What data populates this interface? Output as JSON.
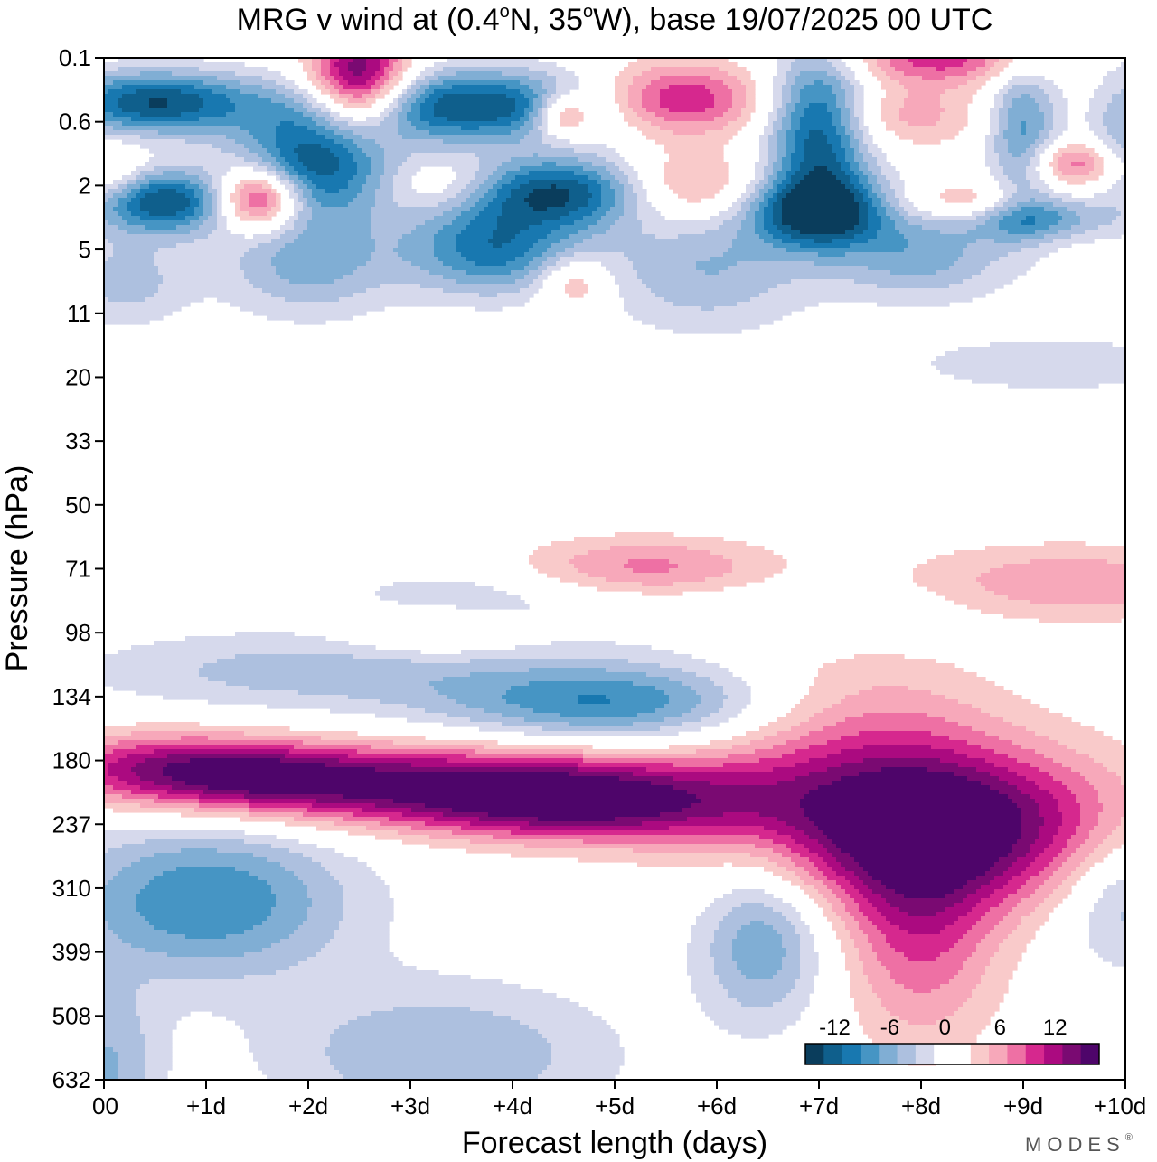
{
  "chart_data": {
    "type": "heatmap",
    "title": "MRG v wind at (0.4°N, 35°W),  base 19/07/2025  00 UTC",
    "title_parts": {
      "prefix": "MRG v wind at (0.4",
      "deg1": "o",
      "mid": "N, 35",
      "deg2": "o",
      "suffix": "W),  base 19/07/2025  00 UTC"
    },
    "xlabel": "Forecast length (days)",
    "ylabel": "Pressure (hPa)",
    "x_ticks": [
      "00",
      "+1d",
      "+2d",
      "+3d",
      "+4d",
      "+5d",
      "+6d",
      "+7d",
      "+8d",
      "+9d",
      "+10d"
    ],
    "x_range": [
      0,
      10
    ],
    "y_ticks": [
      "0.1",
      "0.6",
      "2",
      "5",
      "11",
      "20",
      "33",
      "50",
      "71",
      "98",
      "134",
      "180",
      "237",
      "310",
      "399",
      "508",
      "632"
    ],
    "y_scale": "log-pressure, index 0..16 top to bottom",
    "colorbar": {
      "labels": [
        "-12",
        "-6",
        "0",
        "6",
        "12"
      ],
      "label_values": [
        -12,
        -6,
        0,
        6,
        12
      ],
      "levels": [
        -14,
        -12,
        -10,
        -8,
        -6,
        -4,
        -2,
        0,
        2,
        4,
        6,
        8,
        10,
        12,
        14
      ],
      "colors": [
        "#0a3d5c",
        "#0f5f8c",
        "#1878b0",
        "#4695c4",
        "#80aed4",
        "#adc0df",
        "#d6d9ec",
        "#ffffff",
        "#ffffff",
        "#f9caca",
        "#f7a8ba",
        "#ee70a4",
        "#d6288e",
        "#ab0a80",
        "#7a0a72",
        "#4e056a"
      ]
    },
    "features": [
      {
        "name": "neg-blob-310hPa-1.2d",
        "x": 1.0,
        "y": 13.2,
        "sx": 1.0,
        "sy": 0.85,
        "v": -10
      },
      {
        "name": "neg-blob-420hPa-6.4d",
        "x": 6.45,
        "y": 13.8,
        "sx": 0.45,
        "sy": 0.9,
        "v": -8
      },
      {
        "name": "neg-blob-632hPa-3.3d",
        "x": 3.3,
        "y": 15.6,
        "sx": 1.2,
        "sy": 0.8,
        "v": -6
      },
      {
        "name": "neg-blob-632hPa-0d",
        "x": 0.05,
        "y": 15.8,
        "sx": 0.35,
        "sy": 0.9,
        "v": -6
      },
      {
        "name": "neg-blob-310hPa-10d",
        "x": 10.0,
        "y": 13.1,
        "sx": 0.45,
        "sy": 0.8,
        "v": -6
      },
      {
        "name": "neg-band-115hPa-2d",
        "x": 2.0,
        "y": 9.6,
        "sx": 1.6,
        "sy": 0.45,
        "v": -5
      },
      {
        "name": "neg-band-134hPa-5d",
        "x": 5.0,
        "y": 10.1,
        "sx": 1.2,
        "sy": 0.45,
        "v": -10
      },
      {
        "name": "neg-band-80hPa-3.6d",
        "x": 3.6,
        "y": 8.4,
        "sx": 1.0,
        "sy": 0.35,
        "v": -3
      },
      {
        "name": "neg-band-75hPa-7.8d",
        "x": 7.8,
        "y": 8.6,
        "sx": 2.2,
        "sy": 0.4,
        "v": -2.5
      },
      {
        "name": "pos-band-180hPa-0.5d",
        "x": 0.5,
        "y": 11.1,
        "sx": 0.9,
        "sy": 0.4,
        "v": 9
      },
      {
        "name": "pos-band-180hPa-1.5d",
        "x": 1.6,
        "y": 11.25,
        "sx": 0.8,
        "sy": 0.35,
        "v": 7
      },
      {
        "name": "pos-band-200hPa-3.5d",
        "x": 3.5,
        "y": 11.4,
        "sx": 1.7,
        "sy": 0.45,
        "v": 14
      },
      {
        "name": "pos-band-237hPa-4.8d",
        "x": 4.8,
        "y": 11.75,
        "sx": 1.1,
        "sy": 0.4,
        "v": 9
      },
      {
        "name": "pos-blob-237hPa-8d",
        "x": 8.1,
        "y": 12.0,
        "sx": 1.3,
        "sy": 0.85,
        "v": 17
      },
      {
        "name": "pos-tail-399hPa-8d",
        "x": 8.0,
        "y": 13.6,
        "sx": 0.55,
        "sy": 1.3,
        "v": 8
      },
      {
        "name": "pos-band-134hPa-7.3d",
        "x": 7.3,
        "y": 10.3,
        "sx": 1.0,
        "sy": 0.8,
        "v": 5
      },
      {
        "name": "pos-band-71hPa-5.2d",
        "x": 5.3,
        "y": 8.0,
        "sx": 0.9,
        "sy": 0.35,
        "v": 7
      },
      {
        "name": "pos-band-71hPa-9.5d",
        "x": 9.4,
        "y": 8.3,
        "sx": 1.2,
        "sy": 0.45,
        "v": 7
      },
      {
        "name": "pos-blob-98hPa-3.3d",
        "x": 3.2,
        "y": 9.0,
        "sx": 0.6,
        "sy": 0.25,
        "v": 4
      },
      {
        "name": "neg-blob-0.4hPa-0.5d",
        "x": 0.5,
        "y": 0.7,
        "sx": 0.7,
        "sy": 0.35,
        "v": -14
      },
      {
        "name": "neg-blob-0.3hPa-4d",
        "x": 3.6,
        "y": 0.75,
        "sx": 1.0,
        "sy": 0.4,
        "v": -14
      },
      {
        "name": "neg-blob-1hPa-2.1d",
        "x": 2.1,
        "y": 1.6,
        "sx": 0.55,
        "sy": 0.6,
        "v": -14
      },
      {
        "name": "neg-blob-2.5hPa-0.5d",
        "x": 0.55,
        "y": 2.25,
        "sx": 0.55,
        "sy": 0.35,
        "v": -14
      },
      {
        "name": "neg-blob-2hPa-4.5d",
        "x": 4.5,
        "y": 2.1,
        "sx": 0.7,
        "sy": 0.4,
        "v": -14
      },
      {
        "name": "neg-blob-5hPa-3.8d",
        "x": 3.8,
        "y": 3.0,
        "sx": 0.6,
        "sy": 0.5,
        "v": -11
      },
      {
        "name": "neg-blob-0.5hPa-7d",
        "x": 7.0,
        "y": 1.1,
        "sx": 0.35,
        "sy": 0.9,
        "v": -14
      },
      {
        "name": "neg-blob-2.5hPa-7d",
        "x": 7.0,
        "y": 2.4,
        "sx": 0.5,
        "sy": 0.4,
        "v": -14
      },
      {
        "name": "neg-blob-7hPa-5.9d",
        "x": 5.9,
        "y": 3.3,
        "sx": 0.7,
        "sy": 0.7,
        "v": -6
      },
      {
        "name": "neg-blob-7hPa-8d",
        "x": 8.0,
        "y": 3.1,
        "sx": 0.6,
        "sy": 0.5,
        "v": -7
      },
      {
        "name": "neg-blob-0.6hPa-9d",
        "x": 9.0,
        "y": 1.2,
        "sx": 0.25,
        "sy": 0.9,
        "v": -9
      },
      {
        "name": "neg-blob-3hPa-9d",
        "x": 9.05,
        "y": 2.5,
        "sx": 0.55,
        "sy": 0.25,
        "v": -9
      },
      {
        "name": "neg-blob-5hPa-0.2d",
        "x": 0.2,
        "y": 3.5,
        "sx": 0.45,
        "sy": 0.5,
        "v": -5
      },
      {
        "name": "neg-blob-5hPa-2.2d",
        "x": 2.0,
        "y": 3.2,
        "sx": 0.6,
        "sy": 0.6,
        "v": -7
      },
      {
        "name": "neg-band-20hPa-9.3d",
        "x": 9.3,
        "y": 4.8,
        "sx": 1.0,
        "sy": 0.3,
        "v": -4
      },
      {
        "name": "neg-band-20hPa-10d",
        "x": 10.0,
        "y": 1.2,
        "sx": 0.25,
        "sy": 0.8,
        "v": -6
      },
      {
        "name": "pos-blob-0.1hPa-2.5d",
        "x": 2.5,
        "y": 0.4,
        "sx": 0.35,
        "sy": 0.6,
        "v": 17
      },
      {
        "name": "pos-blob-2hPa-1.5d",
        "x": 1.5,
        "y": 2.2,
        "sx": 0.3,
        "sy": 0.35,
        "v": 16
      },
      {
        "name": "pos-blob-0.3hPa-5.6d",
        "x": 5.6,
        "y": 0.65,
        "sx": 0.6,
        "sy": 0.4,
        "v": 11
      },
      {
        "name": "pos-blob-2hPa-5.6d",
        "x": 5.65,
        "y": 2.05,
        "sx": 0.55,
        "sy": 0.4,
        "v": 8
      },
      {
        "name": "pos-blob-0.6hPa-4.5d",
        "x": 4.5,
        "y": 0.9,
        "sx": 0.2,
        "sy": 0.25,
        "v": 10
      },
      {
        "name": "pos-blob-0.1hPa-8d",
        "x": 8.2,
        "y": 0.0,
        "sx": 0.7,
        "sy": 0.3,
        "v": 9
      },
      {
        "name": "pos-blob-0.6hPa-8d",
        "x": 7.8,
        "y": 0.9,
        "sx": 0.6,
        "sy": 0.35,
        "v": 5
      },
      {
        "name": "pos-blob-2hPa-9.5d",
        "x": 9.5,
        "y": 1.65,
        "sx": 0.35,
        "sy": 0.25,
        "v": 8
      },
      {
        "name": "pos-blob-3hPa-8.5d",
        "x": 8.5,
        "y": 2.3,
        "sx": 0.5,
        "sy": 0.25,
        "v": 7
      },
      {
        "name": "pos-blob-2hPa-3.3d",
        "x": 3.3,
        "y": 2.0,
        "sx": 0.4,
        "sy": 0.3,
        "v": 4
      },
      {
        "name": "pos-blob-6hPa-4.6d",
        "x": 4.6,
        "y": 3.5,
        "sx": 0.25,
        "sy": 0.3,
        "v": 6
      },
      {
        "name": "pos-blob-2hPa-0d",
        "x": 0.05,
        "y": 1.9,
        "sx": 0.25,
        "sy": 0.35,
        "v": 5
      }
    ]
  },
  "brand": "MODES",
  "brand_mark": "®"
}
